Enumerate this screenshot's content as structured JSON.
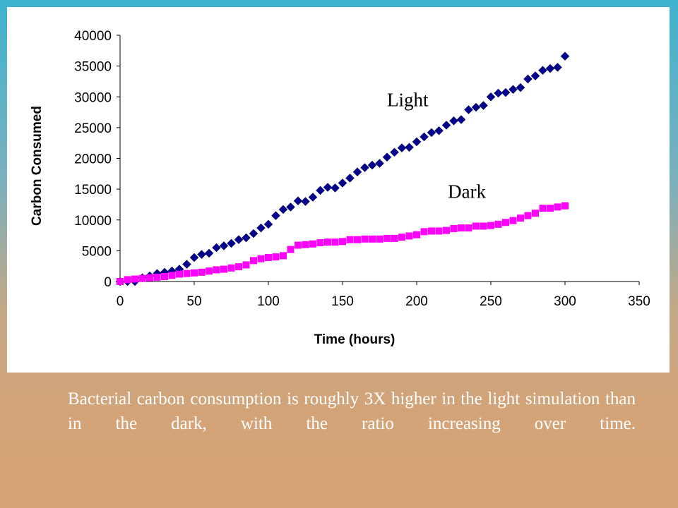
{
  "caption": "Bacterial carbon consumption is roughly 3X higher in the light simulation than in the dark, with the ratio increasing over time.",
  "chart_data": {
    "type": "scatter",
    "title": "",
    "xlabel": "Time (hours)",
    "ylabel": "Carbon Consumed",
    "xlim": [
      0,
      350
    ],
    "ylim": [
      0,
      40000
    ],
    "x_ticks": [
      0,
      50,
      100,
      150,
      200,
      250,
      300,
      350
    ],
    "y_ticks": [
      0,
      5000,
      10000,
      15000,
      20000,
      25000,
      30000,
      35000,
      40000
    ],
    "grid": false,
    "legend": "none",
    "annotations": [
      {
        "text": "Light",
        "x": 180,
        "y": 28500
      },
      {
        "text": "Dark",
        "x": 221,
        "y": 13600
      }
    ],
    "series": [
      {
        "name": "Light",
        "color": "#00008b",
        "marker": "diamond",
        "x": [
          0,
          5,
          10,
          15,
          20,
          25,
          30,
          35,
          40,
          45,
          50,
          55,
          60,
          65,
          70,
          75,
          80,
          85,
          90,
          95,
          100,
          105,
          110,
          115,
          120,
          125,
          130,
          135,
          140,
          145,
          150,
          155,
          160,
          165,
          170,
          175,
          180,
          185,
          190,
          195,
          200,
          205,
          210,
          215,
          220,
          225,
          230,
          235,
          240,
          245,
          250,
          255,
          260,
          265,
          270,
          275,
          280,
          285,
          290,
          295,
          300
        ],
        "y": [
          0,
          0,
          0,
          600,
          900,
          1300,
          1500,
          1700,
          2000,
          2800,
          3900,
          4400,
          4600,
          5500,
          5800,
          6200,
          6800,
          7100,
          7800,
          8700,
          9300,
          10700,
          11700,
          12100,
          13100,
          13000,
          13700,
          14800,
          15300,
          15200,
          16000,
          16800,
          17800,
          18500,
          18900,
          19200,
          20200,
          21000,
          21700,
          21800,
          22700,
          23500,
          24200,
          24500,
          25400,
          26100,
          26300,
          27900,
          28300,
          28600,
          30000,
          30600,
          30700,
          31200,
          31500,
          32900,
          33400,
          34300,
          34600,
          34800,
          36600
        ]
      },
      {
        "name": "Dark",
        "color": "#ff00ff",
        "marker": "square",
        "x": [
          0,
          5,
          10,
          15,
          20,
          25,
          30,
          35,
          40,
          45,
          50,
          55,
          60,
          65,
          70,
          75,
          80,
          85,
          90,
          95,
          100,
          105,
          110,
          115,
          120,
          125,
          130,
          135,
          140,
          145,
          150,
          155,
          160,
          165,
          170,
          175,
          180,
          185,
          190,
          195,
          200,
          205,
          210,
          215,
          220,
          225,
          230,
          235,
          240,
          245,
          250,
          255,
          260,
          265,
          270,
          275,
          280,
          285,
          290,
          295,
          300
        ],
        "y": [
          0,
          300,
          400,
          500,
          600,
          700,
          800,
          1000,
          1200,
          1300,
          1400,
          1500,
          1700,
          1900,
          2000,
          2200,
          2400,
          2700,
          3400,
          3700,
          3900,
          4000,
          4200,
          5200,
          5900,
          6000,
          6100,
          6300,
          6400,
          6400,
          6500,
          6800,
          6800,
          6900,
          6900,
          6900,
          7000,
          7000,
          7200,
          7400,
          7600,
          8100,
          8200,
          8200,
          8300,
          8600,
          8700,
          8700,
          9000,
          9000,
          9100,
          9300,
          9600,
          9900,
          10300,
          10700,
          11100,
          11900,
          11900,
          12100,
          12300
        ]
      }
    ]
  }
}
